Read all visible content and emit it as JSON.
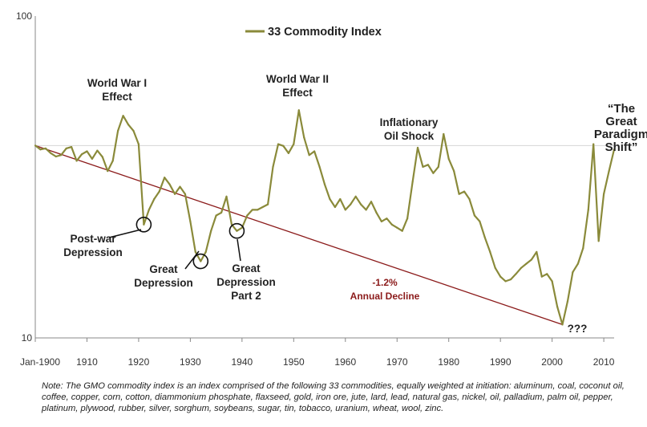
{
  "chart_data": {
    "type": "line",
    "title": "",
    "y_scale": "log",
    "ylim": [
      10,
      100
    ],
    "xlim": [
      1900,
      2012
    ],
    "y_ticks": [
      "100",
      "10"
    ],
    "x_ticks": [
      {
        "year": 1900,
        "label": "Jan-1900"
      },
      {
        "year": 1910,
        "label": "1910"
      },
      {
        "year": 1920,
        "label": "1920"
      },
      {
        "year": 1930,
        "label": "1930"
      },
      {
        "year": 1940,
        "label": "1940"
      },
      {
        "year": 1950,
        "label": "1950"
      },
      {
        "year": 1960,
        "label": "1960"
      },
      {
        "year": 1970,
        "label": "1970"
      },
      {
        "year": 1980,
        "label": "1980"
      },
      {
        "year": 1990,
        "label": "1990"
      },
      {
        "year": 2000,
        "label": "2000"
      },
      {
        "year": 2010,
        "label": "2010"
      }
    ],
    "reference_line_value": 39.6,
    "series": [
      {
        "name": "33 Commodity Index",
        "color": "#8a8a3a",
        "points": [
          [
            1900,
            39.6
          ],
          [
            1901,
            38.5
          ],
          [
            1902,
            38.8
          ],
          [
            1903,
            37.5
          ],
          [
            1904,
            36.6
          ],
          [
            1905,
            37.0
          ],
          [
            1906,
            38.8
          ],
          [
            1907,
            39.2
          ],
          [
            1908,
            35.5
          ],
          [
            1909,
            37.2
          ],
          [
            1910,
            38.0
          ],
          [
            1911,
            36.0
          ],
          [
            1912,
            38.2
          ],
          [
            1913,
            36.5
          ],
          [
            1914,
            33.0
          ],
          [
            1915,
            35.5
          ],
          [
            1916,
            44.0
          ],
          [
            1917,
            49.0
          ],
          [
            1918,
            46.0
          ],
          [
            1919,
            44.0
          ],
          [
            1920,
            40.0
          ],
          [
            1921,
            22.5
          ],
          [
            1922,
            25.0
          ],
          [
            1923,
            27.0
          ],
          [
            1924,
            28.5
          ],
          [
            1925,
            31.5
          ],
          [
            1926,
            30.0
          ],
          [
            1927,
            28.0
          ],
          [
            1928,
            29.5
          ],
          [
            1929,
            28.0
          ],
          [
            1930,
            23.0
          ],
          [
            1931,
            18.5
          ],
          [
            1932,
            17.3
          ],
          [
            1933,
            18.5
          ],
          [
            1934,
            21.5
          ],
          [
            1935,
            24.0
          ],
          [
            1936,
            24.5
          ],
          [
            1937,
            27.5
          ],
          [
            1938,
            22.5
          ],
          [
            1939,
            21.5
          ],
          [
            1940,
            22.0
          ],
          [
            1941,
            24.0
          ],
          [
            1942,
            25.0
          ],
          [
            1943,
            25.0
          ],
          [
            1944,
            25.5
          ],
          [
            1945,
            26.0
          ],
          [
            1946,
            34.0
          ],
          [
            1947,
            40.0
          ],
          [
            1948,
            39.5
          ],
          [
            1949,
            37.5
          ],
          [
            1950,
            40.0
          ],
          [
            1951,
            51.0
          ],
          [
            1952,
            42.0
          ],
          [
            1953,
            37.0
          ],
          [
            1954,
            38.0
          ],
          [
            1955,
            34.0
          ],
          [
            1956,
            30.0
          ],
          [
            1957,
            27.0
          ],
          [
            1958,
            25.5
          ],
          [
            1959,
            27.0
          ],
          [
            1960,
            25.0
          ],
          [
            1961,
            26.0
          ],
          [
            1962,
            27.5
          ],
          [
            1963,
            26.0
          ],
          [
            1964,
            25.0
          ],
          [
            1965,
            26.5
          ],
          [
            1966,
            24.5
          ],
          [
            1967,
            23.0
          ],
          [
            1968,
            23.5
          ],
          [
            1969,
            22.5
          ],
          [
            1970,
            22.0
          ],
          [
            1971,
            21.5
          ],
          [
            1972,
            23.5
          ],
          [
            1973,
            30.5
          ],
          [
            1974,
            39.0
          ],
          [
            1975,
            34.0
          ],
          [
            1976,
            34.5
          ],
          [
            1977,
            32.5
          ],
          [
            1978,
            34.0
          ],
          [
            1979,
            43.0
          ],
          [
            1980,
            36.0
          ],
          [
            1981,
            33.0
          ],
          [
            1982,
            28.0
          ],
          [
            1983,
            28.5
          ],
          [
            1984,
            27.0
          ],
          [
            1985,
            24.0
          ],
          [
            1986,
            23.0
          ],
          [
            1987,
            20.5
          ],
          [
            1988,
            18.5
          ],
          [
            1989,
            16.5
          ],
          [
            1990,
            15.5
          ],
          [
            1991,
            15.0
          ],
          [
            1992,
            15.2
          ],
          [
            1993,
            15.8
          ],
          [
            1994,
            16.5
          ],
          [
            1995,
            17.0
          ],
          [
            1996,
            17.5
          ],
          [
            1997,
            18.5
          ],
          [
            1998,
            15.5
          ],
          [
            1999,
            15.8
          ],
          [
            2000,
            15.0
          ],
          [
            2001,
            12.5
          ],
          [
            2002,
            11.0
          ],
          [
            2003,
            13.0
          ],
          [
            2004,
            16.0
          ],
          [
            2005,
            17.0
          ],
          [
            2006,
            19.0
          ],
          [
            2007,
            25.0
          ],
          [
            2008,
            40.0
          ],
          [
            2009,
            20.0
          ],
          [
            2010,
            28.0
          ],
          [
            2011,
            33.0
          ],
          [
            2012,
            38.5
          ]
        ]
      },
      {
        "name": "-1.2% Annual Decline",
        "color": "#8b1a1a",
        "points": [
          [
            1900,
            39.6
          ],
          [
            2002,
            11.0
          ]
        ]
      }
    ],
    "circles": [
      {
        "year": 1921,
        "value": 22.5
      },
      {
        "year": 1932,
        "value": 17.3
      },
      {
        "year": 1939,
        "value": 21.5
      }
    ],
    "legend": {
      "label": "33 Commodity Index",
      "position": "top-center"
    },
    "annotations": {
      "ww1": [
        "World War I",
        "Effect"
      ],
      "ww2": [
        "World War II",
        "Effect"
      ],
      "oil": [
        "Inflationary",
        "Oil Shock"
      ],
      "paradigm": [
        "“The",
        "Great",
        "Paradigm",
        "Shift”"
      ],
      "postwar": [
        "Post-war",
        "Depression"
      ],
      "great": [
        "Great",
        "Depression"
      ],
      "great2": [
        "Great",
        "Depression",
        "Part 2"
      ],
      "decline": [
        "-1.2%",
        "Annual Decline"
      ],
      "question": "???"
    }
  },
  "note": "Note: The GMO commodity index is an index comprised of the following 33 commodities, equally weighted at initiation:  aluminum, coal, coconut oil, coffee, copper, corn, cotton, diammonium phosphate, flaxseed, gold, iron ore, jute, lard, lead, natural gas, nickel, oil, palladium, palm oil, pepper, platinum, plywood, rubber, silver, sorghum, soybeans, sugar, tin, tobacco, uranium, wheat, wool, zinc."
}
